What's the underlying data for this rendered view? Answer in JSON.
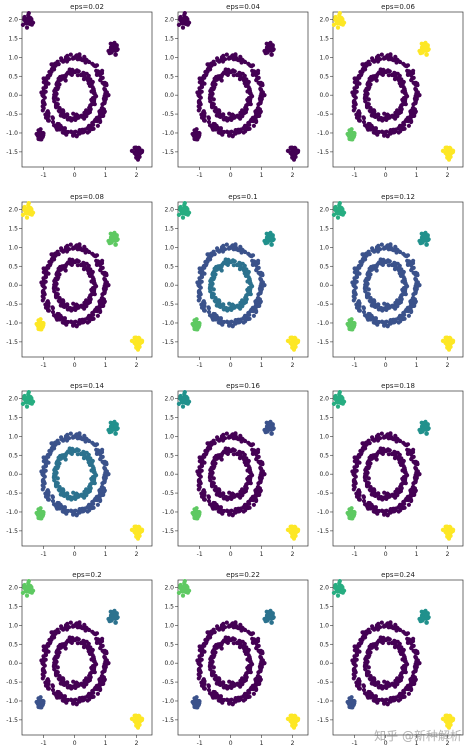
{
  "watermark": "知乎 @新种解析",
  "colors": {
    "c0": "#440154",
    "c1": "#3b528b",
    "c2": "#21918c",
    "c3": "#5ec962",
    "c4": "#fde725",
    "c5": "#2c728e",
    "c6": "#27ad81"
  },
  "chart_data": [
    {
      "type": "scatter",
      "title": "eps=0.02",
      "xlim": [
        -1.7,
        2.5
      ],
      "ylim": [
        -1.9,
        2.2
      ],
      "xticks": [
        "-1",
        "0",
        "1",
        "2"
      ],
      "yticks": [
        "2.0",
        "1.5",
        "1.0",
        "0.5",
        "0.0",
        "-0.5",
        "-1.0",
        "-1.5"
      ],
      "clusters": {
        "outer_ring": "c0",
        "inner_ring": "c0",
        "blob_top_left": "c0",
        "blob_top_right": "c0",
        "blob_bottom_left": "c0",
        "blob_bottom_right": "c0"
      }
    },
    {
      "type": "scatter",
      "title": "eps=0.04",
      "xlim": [
        -1.7,
        2.5
      ],
      "ylim": [
        -1.9,
        2.2
      ],
      "xticks": [
        "-1",
        "0",
        "1",
        "2"
      ],
      "yticks": [
        "2.0",
        "1.5",
        "1.0",
        "0.5",
        "0.0",
        "-0.5",
        "-1.0",
        "-1.5"
      ],
      "clusters": {
        "outer_ring": "c0",
        "inner_ring": "c0",
        "blob_top_left": "c0",
        "blob_top_right": "c0",
        "blob_bottom_left": "c0",
        "blob_bottom_right": "c0"
      }
    },
    {
      "type": "scatter",
      "title": "eps=0.06",
      "xlim": [
        -1.7,
        2.5
      ],
      "ylim": [
        -1.9,
        2.2
      ],
      "xticks": [
        "-1",
        "0",
        "1",
        "2"
      ],
      "yticks": [
        "2.0",
        "1.5",
        "1.0",
        "0.5",
        "0.0",
        "-0.5",
        "-1.0",
        "-1.5"
      ],
      "clusters": {
        "outer_ring": "c0",
        "inner_ring": "c0",
        "blob_top_left": "c4",
        "blob_top_right": "c4",
        "blob_bottom_left": "c3",
        "blob_bottom_right": "c4"
      }
    },
    {
      "type": "scatter",
      "title": "eps=0.08",
      "xlim": [
        -1.7,
        2.5
      ],
      "ylim": [
        -1.9,
        2.2
      ],
      "xticks": [
        "-1",
        "0",
        "1",
        "2"
      ],
      "yticks": [
        "2.0",
        "1.5",
        "1.0",
        "0.5",
        "0.0",
        "-0.5",
        "-1.0",
        "-1.5"
      ],
      "clusters": {
        "outer_ring": "c0",
        "inner_ring": "c0",
        "blob_top_left": "c4",
        "blob_top_right": "c3",
        "blob_bottom_left": "c4",
        "blob_bottom_right": "c4"
      }
    },
    {
      "type": "scatter",
      "title": "eps=0.1",
      "xlim": [
        -1.7,
        2.5
      ],
      "ylim": [
        -1.9,
        2.2
      ],
      "xticks": [
        "-1",
        "0",
        "1",
        "2"
      ],
      "yticks": [
        "2.0",
        "1.5",
        "1.0",
        "0.5",
        "0.0",
        "-0.5",
        "-1.0",
        "-1.5"
      ],
      "clusters": {
        "outer_ring": "c1",
        "inner_ring": "c5",
        "blob_top_left": "c6",
        "blob_top_right": "c2",
        "blob_bottom_left": "c3",
        "blob_bottom_right": "c4"
      }
    },
    {
      "type": "scatter",
      "title": "eps=0.12",
      "xlim": [
        -1.7,
        2.5
      ],
      "ylim": [
        -1.9,
        2.2
      ],
      "xticks": [
        "-1",
        "0",
        "1",
        "2"
      ],
      "yticks": [
        "2.0",
        "1.5",
        "1.0",
        "0.5",
        "0.0",
        "-0.5",
        "-1.0",
        "-1.5"
      ],
      "clusters": {
        "outer_ring": "c1",
        "inner_ring": "c1",
        "blob_top_left": "c6",
        "blob_top_right": "c2",
        "blob_bottom_left": "c3",
        "blob_bottom_right": "c4"
      }
    },
    {
      "type": "scatter",
      "title": "eps=0.14",
      "xlim": [
        -1.7,
        2.5
      ],
      "ylim": [
        -1.9,
        2.2
      ],
      "xticks": [
        "-1",
        "0",
        "1",
        "2"
      ],
      "yticks": [
        "2.0",
        "1.5",
        "1.0",
        "0.5",
        "0.0",
        "-0.5",
        "-1.0",
        "-1.5"
      ],
      "clusters": {
        "outer_ring": "c1",
        "inner_ring": "c5",
        "blob_top_left": "c6",
        "blob_top_right": "c2",
        "blob_bottom_left": "c3",
        "blob_bottom_right": "c4"
      }
    },
    {
      "type": "scatter",
      "title": "eps=0.16",
      "xlim": [
        -1.7,
        2.5
      ],
      "ylim": [
        -1.9,
        2.2
      ],
      "xticks": [
        "-1",
        "0",
        "1",
        "2"
      ],
      "yticks": [
        "2.0",
        "1.5",
        "1.0",
        "0.5",
        "0.0",
        "-0.5",
        "-1.0",
        "-1.5"
      ],
      "clusters": {
        "outer_ring": "c0",
        "inner_ring": "c0",
        "blob_top_left": "c2",
        "blob_top_right": "c1",
        "blob_bottom_left": "c3",
        "blob_bottom_right": "c4"
      }
    },
    {
      "type": "scatter",
      "title": "eps=0.18",
      "xlim": [
        -1.7,
        2.5
      ],
      "ylim": [
        -1.9,
        2.2
      ],
      "xticks": [
        "-1",
        "0",
        "1",
        "2"
      ],
      "yticks": [
        "2.0",
        "1.5",
        "1.0",
        "0.5",
        "0.0",
        "-0.5",
        "-1.0",
        "-1.5"
      ],
      "clusters": {
        "outer_ring": "c0",
        "inner_ring": "c0",
        "blob_top_left": "c6",
        "blob_top_right": "c2",
        "blob_bottom_left": "c3",
        "blob_bottom_right": "c4"
      }
    },
    {
      "type": "scatter",
      "title": "eps=0.2",
      "xlim": [
        -1.7,
        2.5
      ],
      "ylim": [
        -1.9,
        2.2
      ],
      "xticks": [
        "-1",
        "0",
        "1",
        "2"
      ],
      "yticks": [
        "2.0",
        "1.5",
        "1.0",
        "0.5",
        "0.0",
        "-0.5",
        "-1.0",
        "-1.5"
      ],
      "clusters": {
        "outer_ring": "c0",
        "inner_ring": "c0",
        "blob_top_left": "c3",
        "blob_top_right": "c5",
        "blob_bottom_left": "c1",
        "blob_bottom_right": "c4"
      }
    },
    {
      "type": "scatter",
      "title": "eps=0.22",
      "xlim": [
        -1.7,
        2.5
      ],
      "ylim": [
        -1.9,
        2.2
      ],
      "xticks": [
        "-1",
        "0",
        "1",
        "2"
      ],
      "yticks": [
        "2.0",
        "1.5",
        "1.0",
        "0.5",
        "0.0",
        "-0.5",
        "-1.0",
        "-1.5"
      ],
      "clusters": {
        "outer_ring": "c0",
        "inner_ring": "c0",
        "blob_top_left": "c3",
        "blob_top_right": "c5",
        "blob_bottom_left": "c1",
        "blob_bottom_right": "c4"
      }
    },
    {
      "type": "scatter",
      "title": "eps=0.24",
      "xlim": [
        -1.7,
        2.5
      ],
      "ylim": [
        -1.9,
        2.2
      ],
      "xticks": [
        "-1",
        "0",
        "1",
        "2"
      ],
      "yticks": [
        "2.0",
        "1.5",
        "1.0",
        "0.5",
        "0.0",
        "-0.5",
        "-1.0",
        "-1.5"
      ],
      "clusters": {
        "outer_ring": "c0",
        "inner_ring": "c0",
        "blob_top_left": "c6",
        "blob_top_right": "c2",
        "blob_bottom_left": "c1",
        "blob_bottom_right": "c4"
      }
    }
  ]
}
